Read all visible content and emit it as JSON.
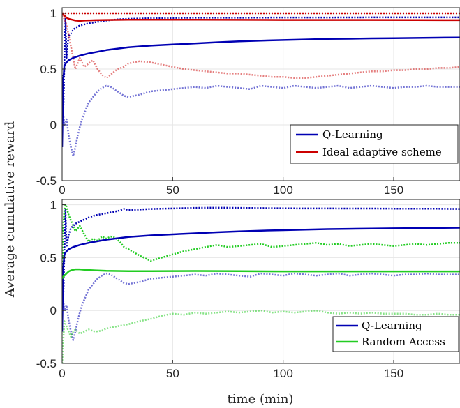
{
  "ylabel": "Average cumulative reward",
  "xlabel": "time (min)",
  "chart_data": [
    {
      "type": "line",
      "xlim": [
        0,
        180
      ],
      "ylim": [
        -0.5,
        1.05
      ],
      "xticks": [
        0,
        50,
        100,
        150
      ],
      "yticks": [
        -0.5,
        0,
        0.5,
        1
      ],
      "ytick_labels": [
        "-0.5",
        "0",
        "0.5",
        "1"
      ],
      "grid": true,
      "legend_position": "bottom-right",
      "series": [
        {
          "name": "Q-Learning",
          "color": "#0000b3",
          "style": "solid",
          "legend": true,
          "x": [
            0,
            0.5,
            1,
            2,
            3,
            5,
            8,
            12,
            20,
            30,
            40,
            50,
            60,
            70,
            80,
            90,
            100,
            110,
            120,
            130,
            140,
            150,
            160,
            170,
            180
          ],
          "y": [
            -0.2,
            0.4,
            0.53,
            0.56,
            0.58,
            0.6,
            0.62,
            0.64,
            0.67,
            0.695,
            0.71,
            0.72,
            0.73,
            0.74,
            0.748,
            0.755,
            0.76,
            0.765,
            0.77,
            0.772,
            0.775,
            0.777,
            0.779,
            0.781,
            0.783
          ]
        },
        {
          "name": "Ideal adaptive scheme",
          "color": "#cc0000",
          "style": "solid",
          "legend": true,
          "x": [
            0,
            0.5,
            1,
            2,
            3,
            4,
            5,
            6,
            8,
            10,
            15,
            20,
            30,
            40,
            50,
            60,
            80,
            100,
            120,
            140,
            160,
            180
          ],
          "y": [
            1.0,
            0.99,
            0.98,
            0.96,
            0.95,
            0.945,
            0.94,
            0.935,
            0.932,
            0.935,
            0.938,
            0.94,
            0.942,
            0.942,
            0.942,
            0.942,
            0.941,
            0.94,
            0.94,
            0.94,
            0.939,
            0.938
          ]
        },
        {
          "name": "",
          "color": "#0000b3",
          "style": "dotted",
          "opacity": 1,
          "x": [
            0,
            0.5,
            1,
            1.5,
            2,
            2.5,
            3,
            4,
            5,
            6,
            8,
            10,
            12,
            15,
            20,
            25,
            30,
            40,
            50,
            60,
            80,
            100,
            120,
            140,
            160,
            180
          ],
          "y": [
            0.45,
            0.1,
            0.55,
            0.95,
            0.6,
            0.72,
            0.8,
            0.82,
            0.85,
            0.87,
            0.89,
            0.9,
            0.91,
            0.92,
            0.935,
            0.945,
            0.95,
            0.955,
            0.958,
            0.96,
            0.96,
            0.962,
            0.962,
            0.963,
            0.963,
            0.963
          ]
        },
        {
          "name": "",
          "color": "#0000b3",
          "style": "dotted",
          "opacity": 0.55,
          "x": [
            0,
            1,
            2,
            3,
            4,
            5,
            6,
            7,
            8,
            9,
            10,
            12,
            14,
            16,
            18,
            20,
            22,
            25,
            28,
            30,
            35,
            40,
            45,
            50,
            55,
            60,
            65,
            70,
            75,
            80,
            85,
            90,
            95,
            100,
            105,
            110,
            115,
            120,
            125,
            130,
            135,
            140,
            145,
            150,
            155,
            160,
            165,
            170,
            175,
            180
          ],
          "y": [
            0.2,
            0.0,
            0.05,
            -0.1,
            -0.2,
            -0.28,
            -0.2,
            -0.1,
            -0.02,
            0.05,
            0.1,
            0.2,
            0.25,
            0.3,
            0.33,
            0.35,
            0.34,
            0.3,
            0.26,
            0.25,
            0.27,
            0.3,
            0.31,
            0.32,
            0.33,
            0.34,
            0.33,
            0.35,
            0.34,
            0.33,
            0.32,
            0.35,
            0.34,
            0.33,
            0.35,
            0.34,
            0.33,
            0.34,
            0.35,
            0.33,
            0.34,
            0.35,
            0.34,
            0.33,
            0.34,
            0.34,
            0.35,
            0.34,
            0.34,
            0.34
          ]
        },
        {
          "name": "",
          "color": "#cc0000",
          "style": "dotted",
          "opacity": 1,
          "x": [
            0,
            180
          ],
          "y": [
            1.0,
            1.0
          ]
        },
        {
          "name": "",
          "color": "#cc0000",
          "style": "dotted",
          "opacity": 0.5,
          "x": [
            0,
            1,
            2,
            3,
            4,
            5,
            6,
            7,
            8,
            10,
            12,
            14,
            16,
            18,
            20,
            22,
            25,
            28,
            30,
            35,
            40,
            45,
            50,
            55,
            60,
            65,
            70,
            75,
            80,
            85,
            90,
            95,
            100,
            105,
            110,
            115,
            120,
            125,
            130,
            135,
            140,
            145,
            150,
            155,
            160,
            165,
            170,
            175,
            180
          ],
          "y": [
            0.98,
            0.95,
            0.9,
            0.8,
            0.7,
            0.6,
            0.5,
            0.55,
            0.6,
            0.52,
            0.55,
            0.58,
            0.5,
            0.45,
            0.42,
            0.45,
            0.5,
            0.52,
            0.55,
            0.57,
            0.56,
            0.54,
            0.52,
            0.5,
            0.49,
            0.48,
            0.47,
            0.46,
            0.46,
            0.45,
            0.44,
            0.43,
            0.43,
            0.42,
            0.42,
            0.43,
            0.44,
            0.45,
            0.46,
            0.47,
            0.48,
            0.48,
            0.49,
            0.49,
            0.5,
            0.5,
            0.51,
            0.51,
            0.52
          ]
        }
      ]
    },
    {
      "type": "line",
      "xlim": [
        0,
        180
      ],
      "ylim": [
        -0.5,
        1.05
      ],
      "xticks": [
        0,
        50,
        100,
        150
      ],
      "xtick_labels": [
        "0",
        "50",
        "100",
        "150"
      ],
      "yticks": [
        -0.5,
        0,
        0.5,
        1
      ],
      "ytick_labels": [
        "-0.5",
        "0",
        "0.5",
        "1"
      ],
      "grid": true,
      "legend_position": "bottom-right",
      "series": [
        {
          "name": "Q-Learning",
          "color": "#0000b3",
          "style": "solid",
          "legend": true,
          "x": [
            0,
            0.5,
            1,
            2,
            3,
            5,
            8,
            12,
            20,
            30,
            40,
            50,
            60,
            70,
            80,
            90,
            100,
            110,
            120,
            130,
            140,
            150,
            160,
            170,
            180
          ],
          "y": [
            -0.2,
            0.4,
            0.53,
            0.56,
            0.58,
            0.6,
            0.62,
            0.64,
            0.67,
            0.695,
            0.71,
            0.72,
            0.73,
            0.74,
            0.748,
            0.755,
            0.76,
            0.765,
            0.77,
            0.772,
            0.775,
            0.777,
            0.779,
            0.781,
            0.783
          ]
        },
        {
          "name": "Random Access",
          "color": "#22cc22",
          "style": "solid",
          "legend": true,
          "x": [
            0,
            0.5,
            1,
            2,
            3,
            4,
            5,
            6,
            8,
            10,
            15,
            20,
            30,
            40,
            50,
            60,
            80,
            100,
            120,
            140,
            160,
            180
          ],
          "y": [
            0.3,
            0.32,
            0.33,
            0.35,
            0.37,
            0.38,
            0.385,
            0.39,
            0.39,
            0.385,
            0.38,
            0.375,
            0.372,
            0.372,
            0.373,
            0.374,
            0.372,
            0.37,
            0.37,
            0.37,
            0.37,
            0.37
          ]
        },
        {
          "name": "",
          "color": "#0000b3",
          "style": "dotted",
          "opacity": 1,
          "x": [
            0,
            0.5,
            1,
            1.5,
            2,
            3,
            4,
            5,
            6,
            8,
            10,
            12,
            15,
            20,
            25,
            28,
            30,
            35,
            40,
            50,
            60,
            70,
            80,
            90,
            100,
            110,
            120,
            130,
            140,
            150,
            160,
            170,
            180
          ],
          "y": [
            0.45,
            0.1,
            0.55,
            0.95,
            0.6,
            0.72,
            0.78,
            0.8,
            0.82,
            0.84,
            0.86,
            0.88,
            0.9,
            0.92,
            0.94,
            0.96,
            0.95,
            0.955,
            0.96,
            0.965,
            0.97,
            0.972,
            0.97,
            0.968,
            0.966,
            0.965,
            0.965,
            0.964,
            0.964,
            0.963,
            0.962,
            0.962,
            0.96
          ]
        },
        {
          "name": "",
          "color": "#0000b3",
          "style": "dotted",
          "opacity": 0.55,
          "x": [
            0,
            1,
            2,
            3,
            4,
            5,
            6,
            7,
            8,
            9,
            10,
            12,
            14,
            16,
            18,
            20,
            22,
            25,
            28,
            30,
            35,
            40,
            45,
            50,
            55,
            60,
            65,
            70,
            75,
            80,
            85,
            90,
            95,
            100,
            105,
            110,
            115,
            120,
            125,
            130,
            135,
            140,
            145,
            150,
            155,
            160,
            165,
            170,
            175,
            180
          ],
          "y": [
            0.2,
            0.0,
            0.05,
            -0.1,
            -0.2,
            -0.28,
            -0.2,
            -0.1,
            -0.02,
            0.05,
            0.1,
            0.2,
            0.25,
            0.3,
            0.33,
            0.35,
            0.34,
            0.3,
            0.26,
            0.25,
            0.27,
            0.3,
            0.31,
            0.32,
            0.33,
            0.34,
            0.33,
            0.35,
            0.34,
            0.33,
            0.32,
            0.35,
            0.34,
            0.33,
            0.35,
            0.34,
            0.33,
            0.34,
            0.35,
            0.33,
            0.34,
            0.35,
            0.34,
            0.33,
            0.34,
            0.34,
            0.35,
            0.34,
            0.34,
            0.34
          ]
        },
        {
          "name": "",
          "color": "#22cc22",
          "style": "dotted",
          "opacity": 1,
          "x": [
            0,
            0.5,
            1,
            1.5,
            2,
            3,
            4,
            5,
            6,
            8,
            10,
            12,
            14,
            16,
            18,
            20,
            22,
            24,
            26,
            28,
            30,
            35,
            40,
            45,
            50,
            55,
            60,
            65,
            70,
            75,
            80,
            85,
            90,
            95,
            100,
            105,
            110,
            115,
            120,
            125,
            130,
            135,
            140,
            145,
            150,
            155,
            160,
            165,
            170,
            175,
            180
          ],
          "y": [
            0.3,
            0.8,
            0.95,
            1.0,
            0.98,
            0.9,
            0.85,
            0.8,
            0.75,
            0.8,
            0.72,
            0.65,
            0.68,
            0.66,
            0.7,
            0.68,
            0.7,
            0.69,
            0.65,
            0.6,
            0.58,
            0.52,
            0.47,
            0.5,
            0.53,
            0.56,
            0.58,
            0.6,
            0.62,
            0.6,
            0.61,
            0.62,
            0.63,
            0.6,
            0.61,
            0.62,
            0.63,
            0.64,
            0.62,
            0.63,
            0.61,
            0.62,
            0.63,
            0.62,
            0.61,
            0.62,
            0.63,
            0.62,
            0.63,
            0.64,
            0.64
          ]
        },
        {
          "name": "",
          "color": "#22cc22",
          "style": "dotted",
          "opacity": 0.55,
          "x": [
            0,
            0.5,
            1,
            2,
            3,
            4,
            5,
            6,
            8,
            10,
            12,
            15,
            18,
            20,
            25,
            30,
            35,
            40,
            45,
            50,
            55,
            60,
            65,
            70,
            75,
            80,
            85,
            90,
            95,
            100,
            105,
            110,
            115,
            120,
            125,
            130,
            135,
            140,
            145,
            150,
            155,
            160,
            165,
            170,
            175,
            180
          ],
          "y": [
            -0.5,
            -0.3,
            -0.1,
            -0.15,
            -0.2,
            -0.25,
            -0.2,
            -0.18,
            -0.22,
            -0.2,
            -0.18,
            -0.2,
            -0.19,
            -0.17,
            -0.15,
            -0.13,
            -0.1,
            -0.08,
            -0.05,
            -0.03,
            -0.04,
            -0.02,
            -0.03,
            -0.02,
            -0.01,
            -0.02,
            -0.01,
            0.0,
            -0.02,
            -0.01,
            -0.02,
            -0.01,
            0.0,
            -0.02,
            -0.03,
            -0.02,
            -0.03,
            -0.02,
            -0.03,
            -0.03,
            -0.03,
            -0.04,
            -0.04,
            -0.03,
            -0.04,
            -0.04
          ]
        }
      ]
    }
  ]
}
